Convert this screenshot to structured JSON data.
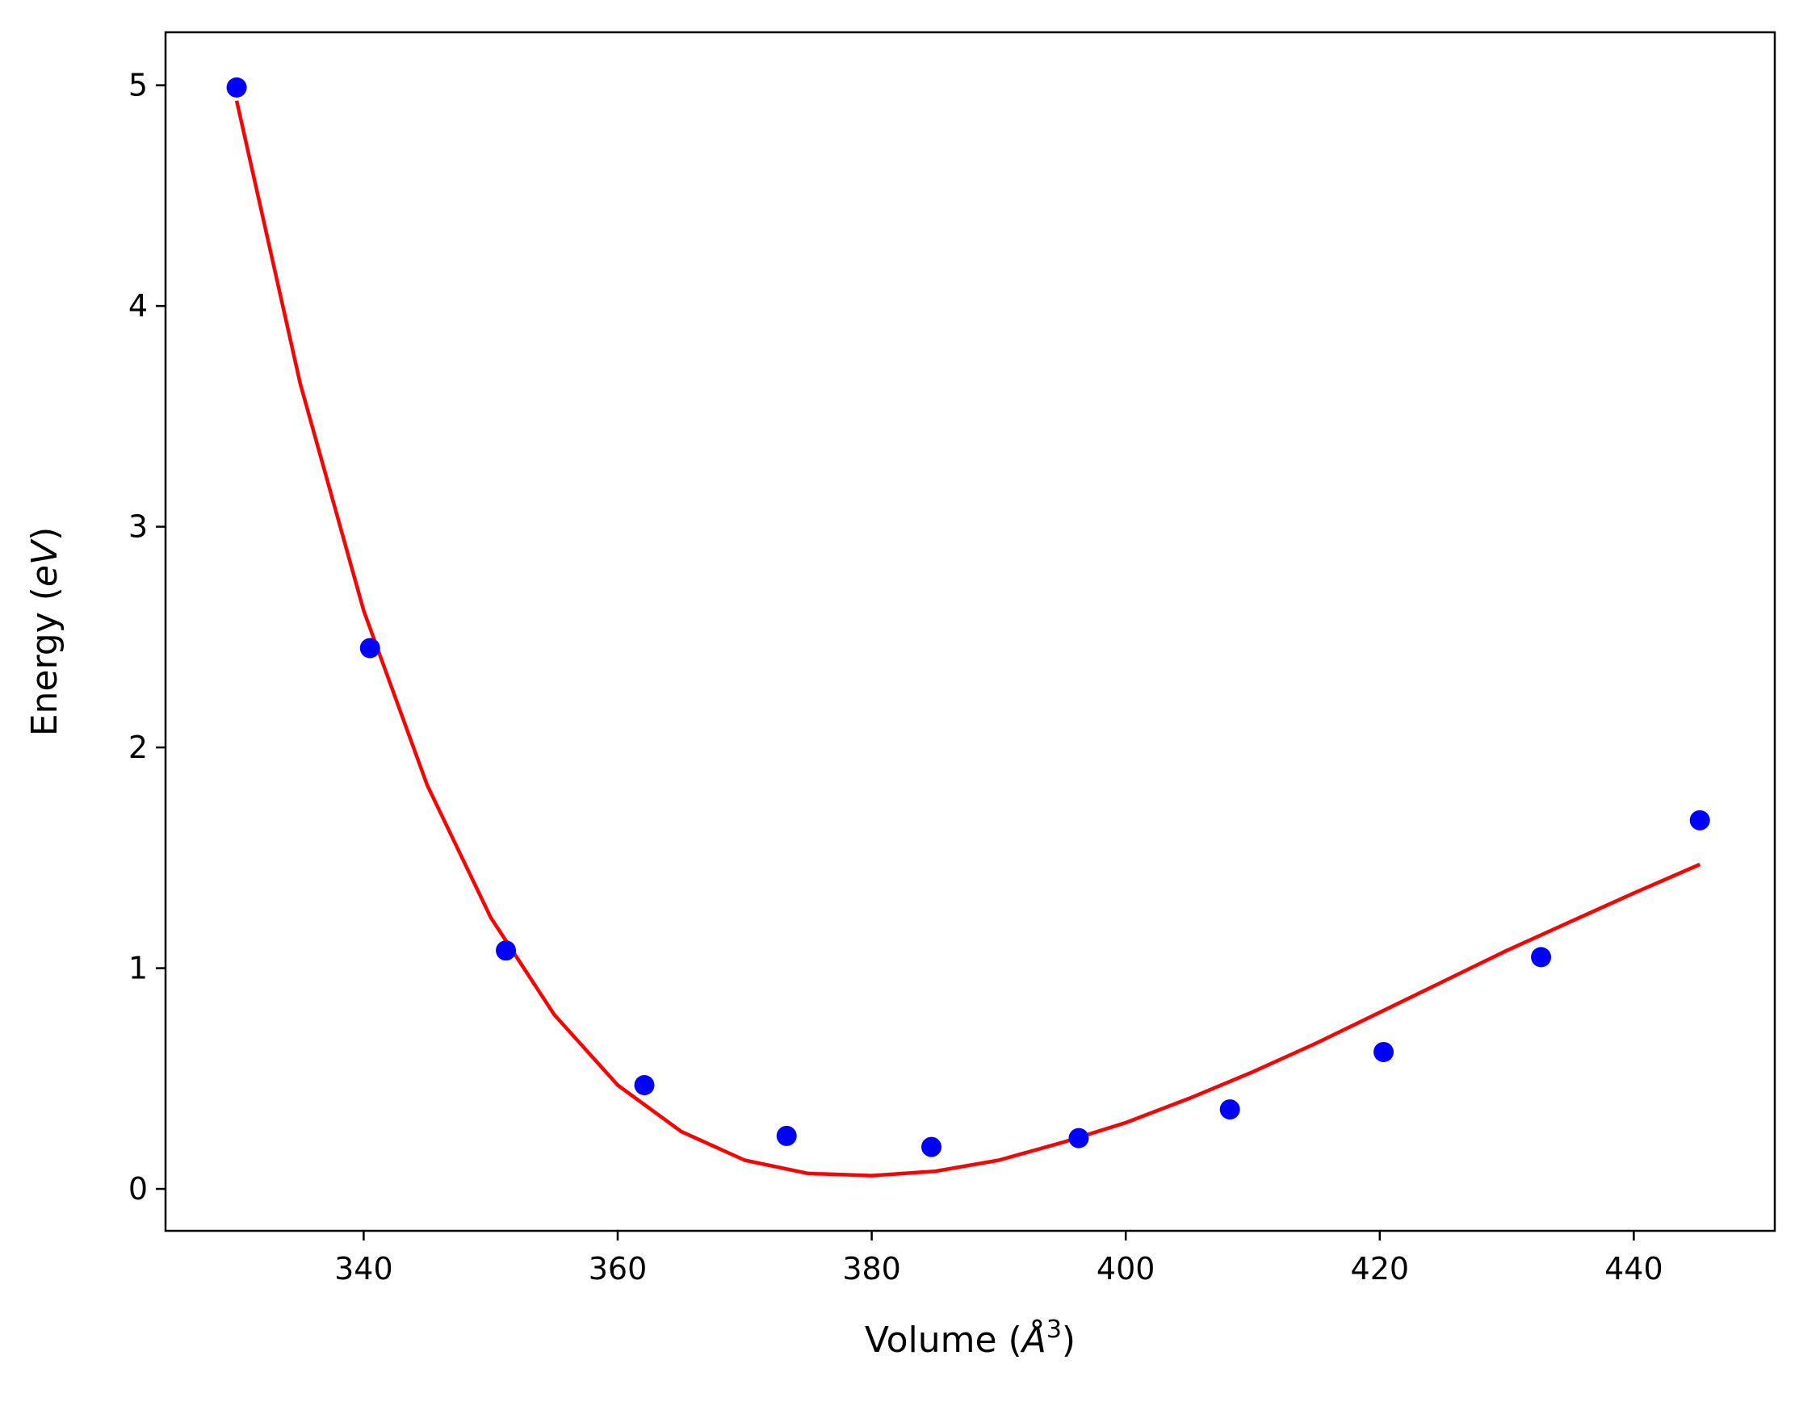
{
  "chart_data": {
    "type": "scatter",
    "title": "",
    "xlabel": {
      "prefix": "Volume (",
      "symbol": "Å",
      "superscript": "3",
      "suffix": ")"
    },
    "ylabel": {
      "prefix": "Energy (",
      "symbol": "eV",
      "suffix": ")"
    },
    "xlim": [
      324.4,
      451.1
    ],
    "ylim": [
      -0.19,
      5.24
    ],
    "xticks": [
      340,
      360,
      380,
      400,
      420,
      440
    ],
    "yticks": [
      0,
      1,
      2,
      3,
      4,
      5
    ],
    "grid": false,
    "legend": "none",
    "series": [
      {
        "kind": "points",
        "color": "#0000ff",
        "x": [
          330.0,
          340.5,
          351.2,
          362.1,
          373.3,
          384.7,
          396.3,
          408.2,
          420.3,
          432.7,
          445.2
        ],
        "y": [
          4.99,
          2.45,
          1.08,
          0.47,
          0.24,
          0.19,
          0.23,
          0.36,
          0.62,
          1.05,
          1.67
        ]
      },
      {
        "kind": "fit-curve",
        "color": "#ff0000",
        "x": [
          330,
          335,
          340,
          345,
          350,
          355,
          360,
          365,
          370,
          375,
          380,
          385,
          390,
          395,
          400,
          405,
          410,
          415,
          420,
          425,
          430,
          435,
          440,
          445.2
        ],
        "y": [
          4.93,
          3.65,
          2.62,
          1.83,
          1.23,
          0.79,
          0.47,
          0.26,
          0.13,
          0.07,
          0.06,
          0.08,
          0.13,
          0.21,
          0.3,
          0.41,
          0.53,
          0.66,
          0.8,
          0.94,
          1.08,
          1.21,
          1.34,
          1.47
        ]
      }
    ]
  }
}
